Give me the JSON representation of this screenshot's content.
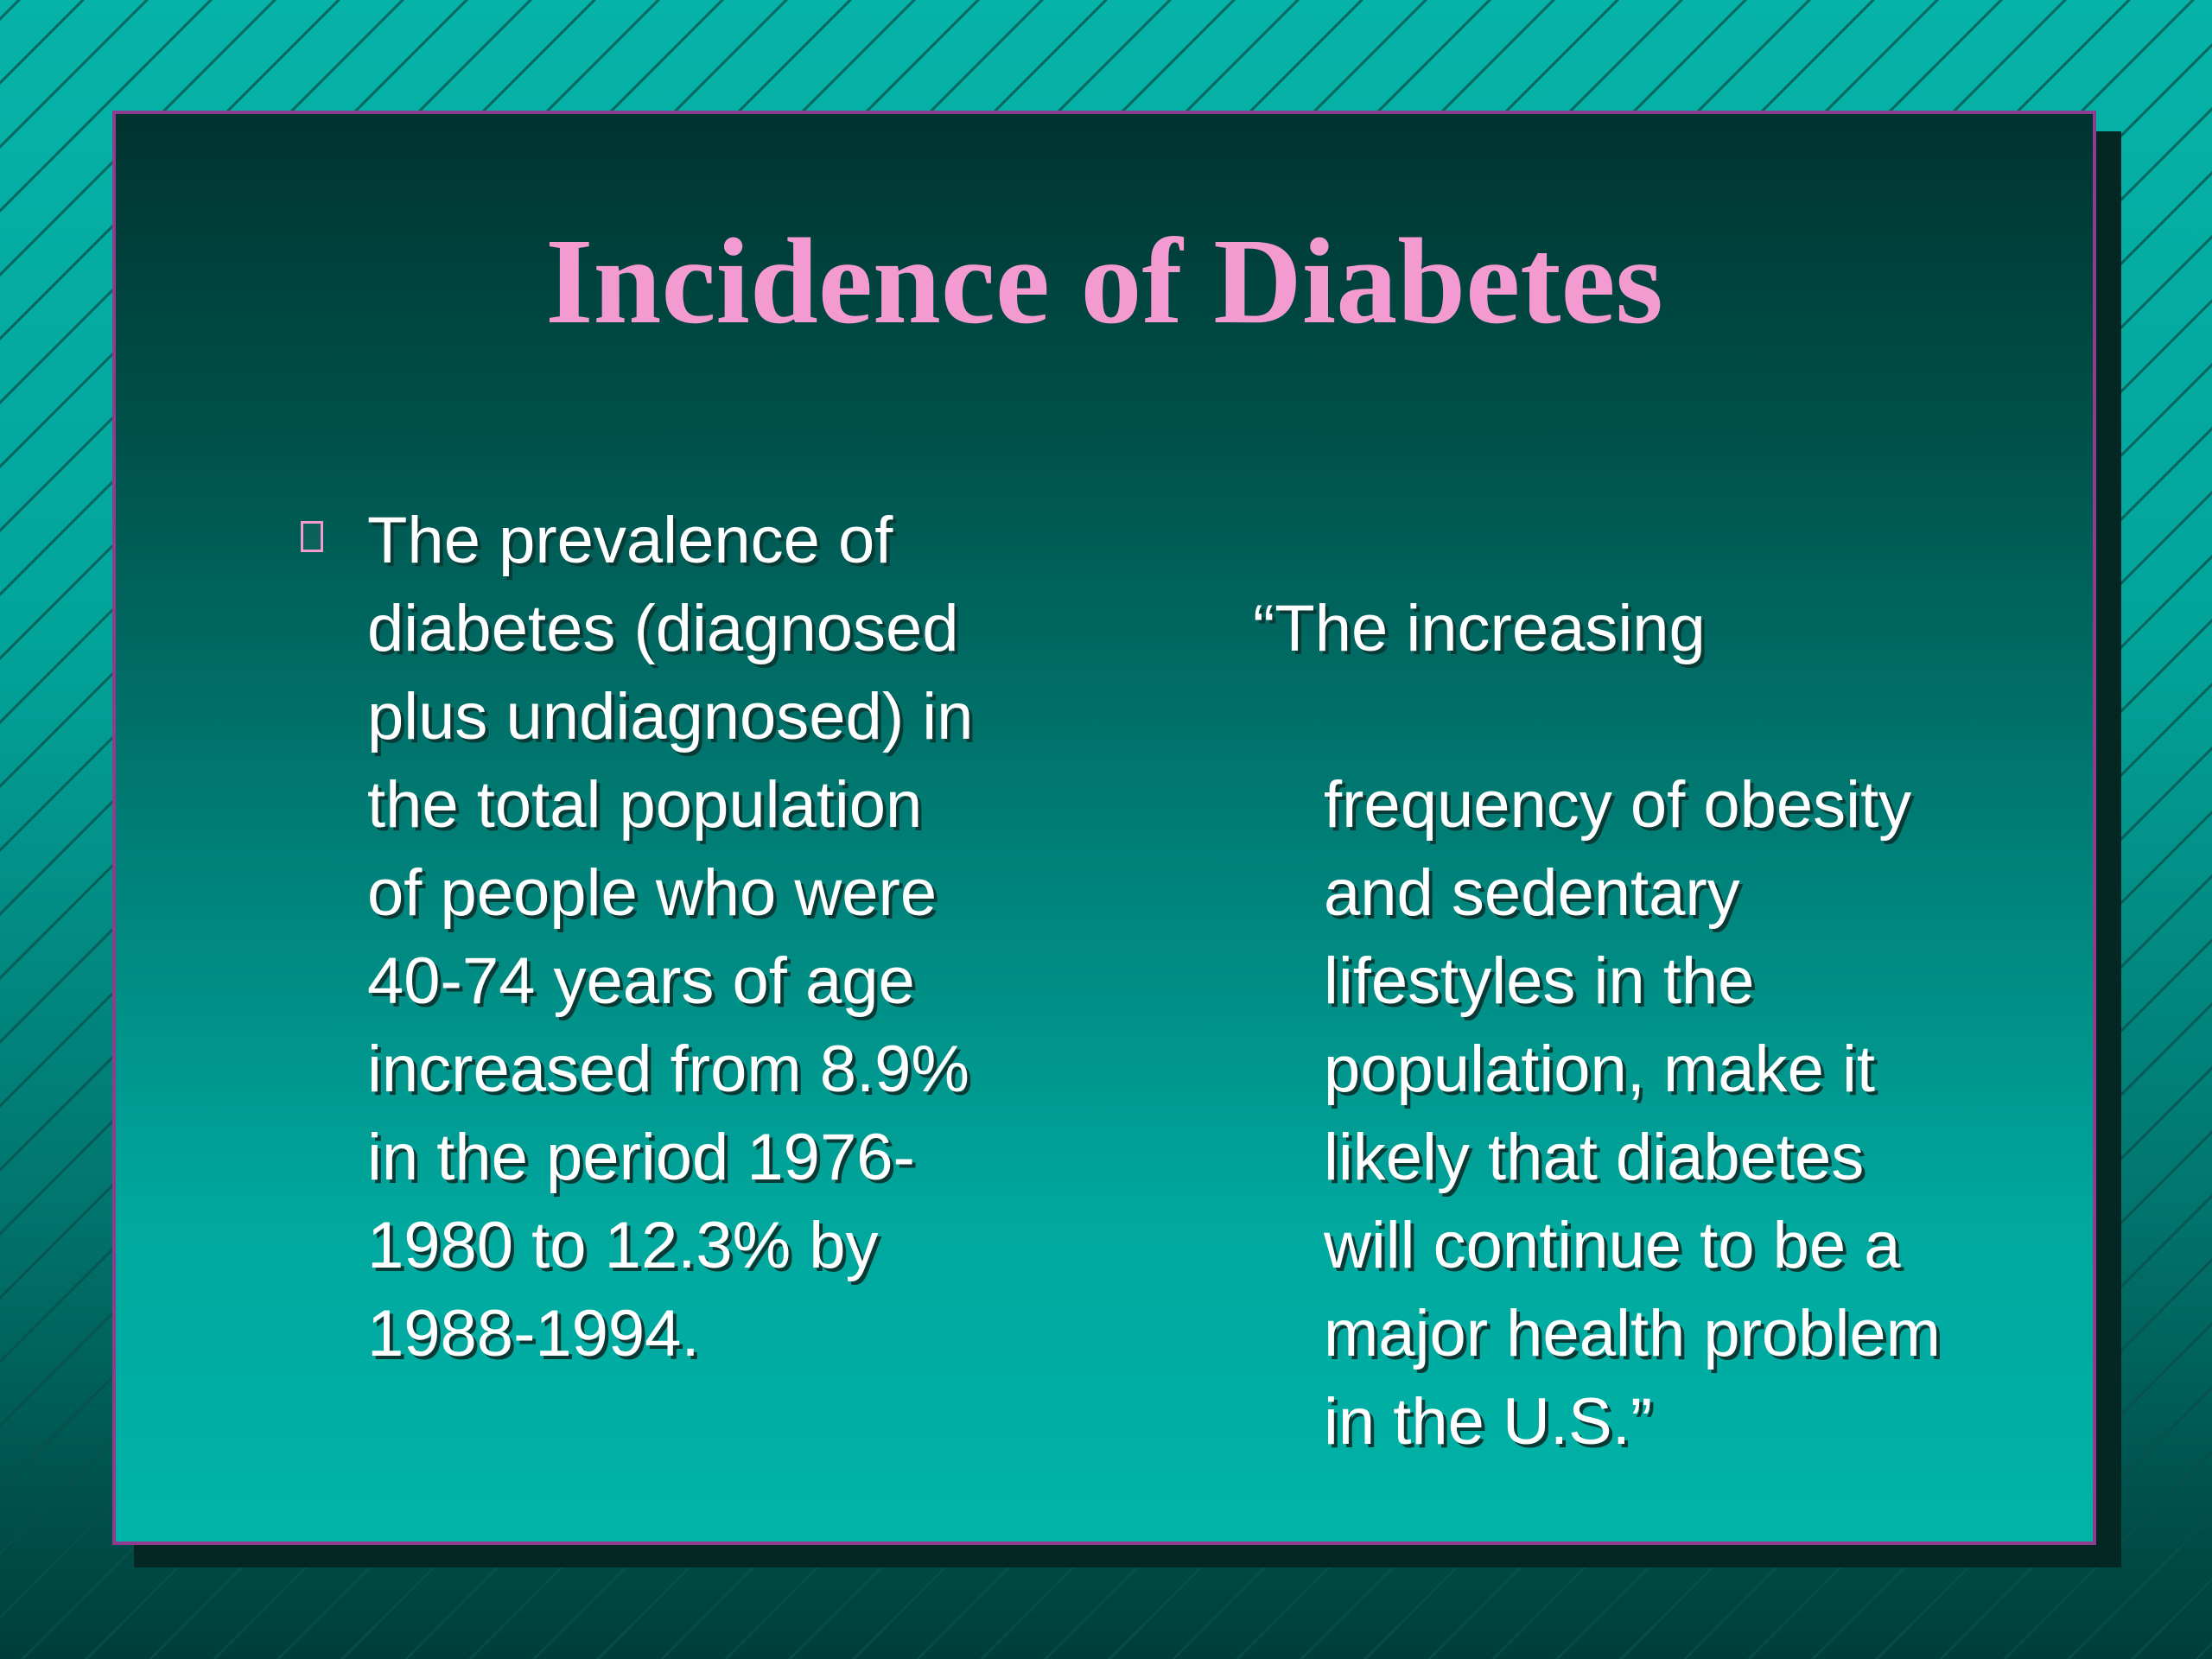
{
  "slide": {
    "title": "Incidence of Diabetes",
    "left_column": {
      "bullet_icon": "square-bullet-icon",
      "text": "The prevalence of\ndiabetes (diagnosed\nplus undiagnosed) in\nthe total population\nof people who were\n40-74 years of age\nincreased from 8.9%\nin the period 1976-\n1980 to 12.3% by\n1988-1994."
    },
    "right_column": {
      "first_line": "“The increasing",
      "rest_text": "frequency of obesity\nand sedentary\nlifestyles in the\npopulation, make it\nlikely that diabetes\nwill continue to be a\nmajor health problem\nin the U.S.”"
    }
  },
  "colors": {
    "title": "#f39ad1",
    "body_text": "#ffffff",
    "panel_border": "#8e3c8e",
    "background": "#02a49a"
  }
}
